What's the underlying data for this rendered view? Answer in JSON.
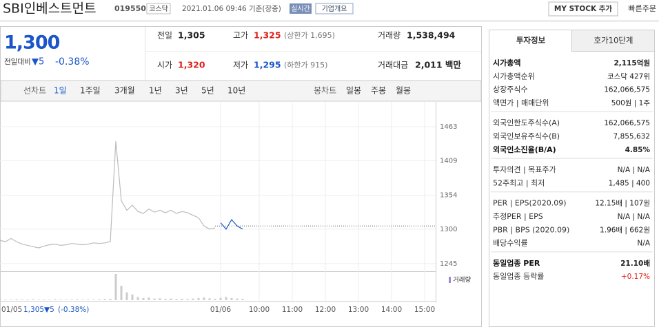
{
  "header": {
    "name": "SBI인베스트먼트",
    "code": "019550",
    "market": "코스닥",
    "datetime": "2021.01.06 09:46 기준(장중)",
    "realtime": "실시간",
    "overview": "기업개요",
    "mystock": "MY STOCK 추가",
    "quick": "빠른주문"
  },
  "quote": {
    "price": "1,300",
    "change_label": "전일대비",
    "change": "▼5",
    "change_pct": "-0.38%"
  },
  "summary": [
    {
      "label": "전일",
      "value": "1,305"
    },
    {
      "label": "고가",
      "value": "1,325",
      "sub": "(상한가 1,695)",
      "color": "#e0201b"
    },
    {
      "label": "거래량",
      "value": "1,538,494"
    },
    {
      "label": "시가",
      "value": "1,320",
      "color": "#e0201b"
    },
    {
      "label": "저가",
      "value": "1,295",
      "sub": "(하한가 915)",
      "color": "#1a56c8"
    },
    {
      "label": "거래대금",
      "value": "2,011 백만"
    }
  ],
  "tabs": {
    "line_label": "선차트",
    "periods": [
      "1일",
      "1주일",
      "3개월",
      "1년",
      "3년",
      "5년",
      "10년"
    ],
    "candle_label": "봉차트",
    "candles": [
      "일봉",
      "주봉",
      "월봉"
    ]
  },
  "footer": {
    "date": "01/05",
    "price": "1,305",
    "change": "▼5",
    "pct": "(-0.38%)"
  },
  "chart_data": {
    "type": "line",
    "categories": [
      null,
      null,
      null,
      null,
      null,
      null,
      null,
      null,
      null,
      null,
      null,
      null,
      null,
      null,
      null,
      null,
      null,
      null,
      null,
      null,
      null,
      null,
      null,
      null,
      null,
      null,
      null,
      null,
      null,
      null,
      null,
      null,
      null,
      null,
      null,
      null,
      null,
      null,
      null,
      null,
      "01/06",
      null,
      null,
      null,
      null,
      null,
      null,
      "10:00",
      null,
      null,
      null,
      null,
      null,
      "11:00",
      null,
      null,
      null,
      null,
      null,
      "12:00",
      null,
      null,
      null,
      null,
      null,
      "13:00",
      null,
      null,
      null,
      null,
      null,
      "14:00",
      null,
      null,
      null,
      null,
      null,
      "15:00",
      null,
      null
    ],
    "series": [
      {
        "color": "#bbbbbb",
        "values": [
          1282,
          1280,
          1285,
          1280,
          1276,
          1274,
          1272,
          1270,
          1273,
          1275,
          1276,
          1274,
          1275,
          1277,
          1276,
          1275,
          1276,
          1278,
          1277,
          1278,
          1280,
          1440,
          1345,
          1330,
          1338,
          1328,
          1325,
          1332,
          1327,
          1330,
          1326,
          1330,
          1325,
          1328,
          1326,
          1322,
          1318,
          1305,
          1300,
          1302,
          null,
          null,
          null,
          null,
          null,
          null,
          null,
          null,
          null,
          null,
          null,
          null,
          null,
          null,
          null,
          null,
          null,
          null,
          null,
          null,
          null,
          null,
          null,
          null,
          null,
          null,
          null,
          null,
          null,
          null,
          null,
          null,
          null,
          null,
          null,
          null,
          null,
          null,
          null,
          null
        ]
      },
      {
        "color": "#1a56c8",
        "values": [
          null,
          null,
          null,
          null,
          null,
          null,
          null,
          null,
          null,
          null,
          null,
          null,
          null,
          null,
          null,
          null,
          null,
          null,
          null,
          null,
          null,
          null,
          null,
          null,
          null,
          null,
          null,
          null,
          null,
          null,
          null,
          null,
          null,
          null,
          null,
          null,
          null,
          null,
          null,
          null,
          1310,
          1300,
          1315,
          1305,
          1300,
          null,
          null,
          null,
          null,
          null,
          null,
          null,
          null,
          null,
          null,
          null,
          null,
          null,
          null,
          null,
          null,
          null,
          null,
          null,
          null,
          null,
          null,
          null,
          null,
          null,
          null,
          null,
          null,
          null,
          null,
          null,
          null,
          null,
          null,
          null
        ]
      },
      {
        "name": "거래량",
        "color": "#cccccc",
        "axis": "y2",
        "values": [
          3,
          2,
          2,
          3,
          2,
          2,
          3,
          2,
          2,
          2,
          3,
          2,
          2,
          2,
          3,
          2,
          2,
          2,
          3,
          4,
          5,
          100,
          55,
          30,
          22,
          12,
          8,
          10,
          6,
          7,
          5,
          6,
          4,
          5,
          4,
          6,
          8,
          10,
          7,
          5,
          9,
          12,
          8,
          6,
          5,
          null,
          null,
          null,
          null,
          null,
          null,
          null,
          null,
          null,
          null,
          null,
          null,
          null,
          null,
          null,
          null,
          null,
          null,
          null,
          null,
          null,
          null,
          null,
          null,
          null,
          null,
          null,
          null,
          null,
          null,
          null,
          null,
          null,
          null,
          null
        ]
      }
    ],
    "reference": 1305,
    "ylim": [
      1235,
      1495
    ],
    "yticks": [
      1245,
      1300,
      1354,
      1409,
      1463
    ],
    "y2lim": [
      0,
      100
    ]
  },
  "side": {
    "tabs": [
      "투자정보",
      "호가10단계"
    ],
    "groups": [
      [
        {
          "label": "시가총액",
          "value": "2,115억원",
          "bold": true
        },
        {
          "label": "시가총액순위",
          "value": "코스닥 427위"
        },
        {
          "label": "상장주식수",
          "value": "162,066,575"
        },
        {
          "label": "액면가 | 매매단위",
          "value": "500원 | 1주"
        }
      ],
      [
        {
          "label": "외국인한도주식수(A)",
          "value": "162,066,575"
        },
        {
          "label": "외국인보유주식수(B)",
          "value": "7,855,632"
        },
        {
          "label": "외국인소진율(B/A)",
          "value": "4.85%",
          "bold": true
        }
      ],
      [
        {
          "label": "투자의견 | 목표주가",
          "value": "N/A | N/A"
        },
        {
          "label": "52주최고 | 최저",
          "value": "1,485 | 400"
        }
      ],
      [
        {
          "label": "PER | EPS(2020.09)",
          "value": "12.15배 | 107원"
        },
        {
          "label": "추정PER | EPS",
          "value": "N/A | N/A"
        },
        {
          "label": "PBR | BPS (2020.09)",
          "value": "1.96배 | 662원"
        },
        {
          "label": "배당수익률",
          "value": "N/A"
        }
      ],
      [
        {
          "label": "동일업종 PER",
          "value": "21.10배",
          "bold": true
        },
        {
          "label": "동일업종 등락률",
          "value": "+0.17%",
          "color": "#e0201b"
        }
      ]
    ]
  }
}
